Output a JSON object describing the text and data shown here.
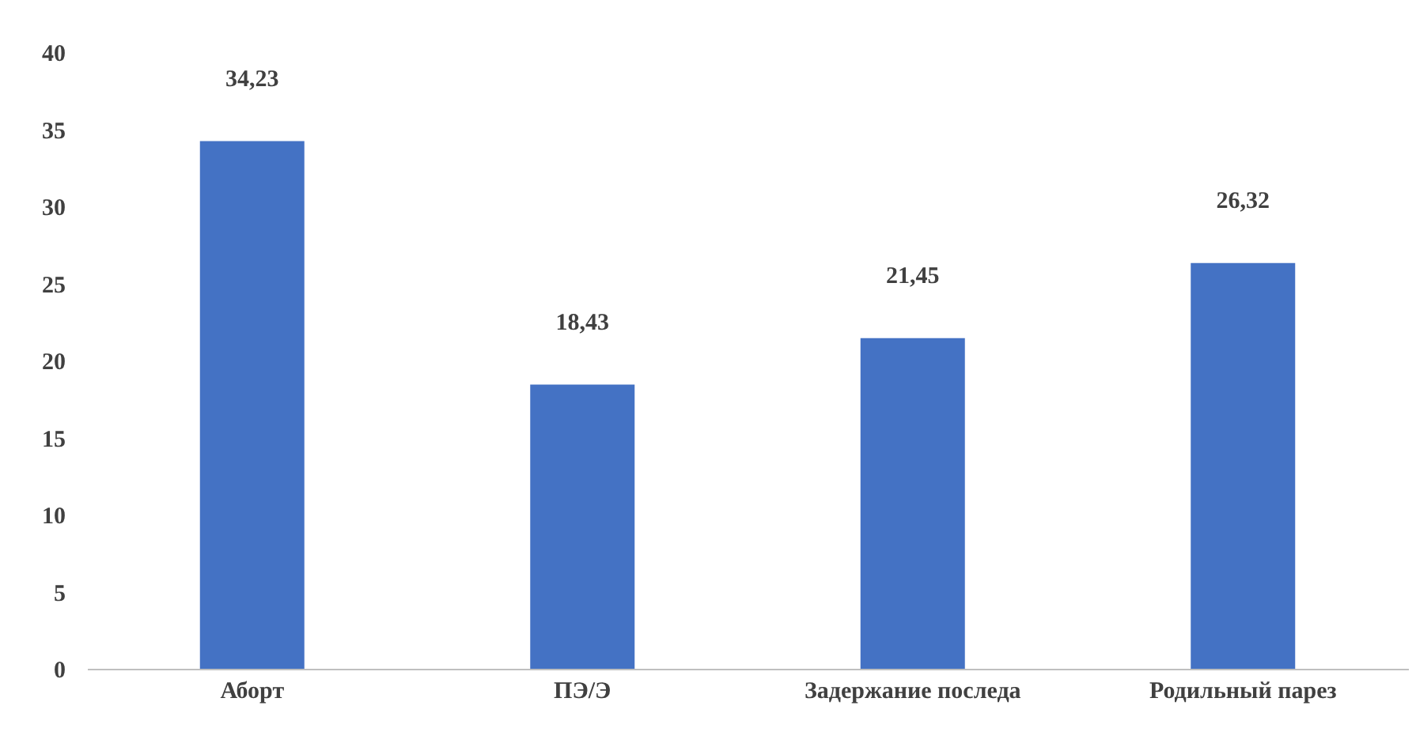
{
  "chart_data": {
    "type": "bar",
    "categories": [
      "Аборт",
      "ПЭ/Э",
      "Задержание последа",
      "Родильный парез"
    ],
    "values": [
      34.23,
      18.43,
      21.45,
      26.32
    ],
    "value_labels": [
      "34,23",
      "18,43",
      "21,45",
      "26,32"
    ],
    "color": "#4472c4",
    "ylim": [
      0,
      40
    ],
    "yticks": [
      0,
      5,
      10,
      15,
      20,
      25,
      30,
      35,
      40
    ],
    "grid": false
  }
}
